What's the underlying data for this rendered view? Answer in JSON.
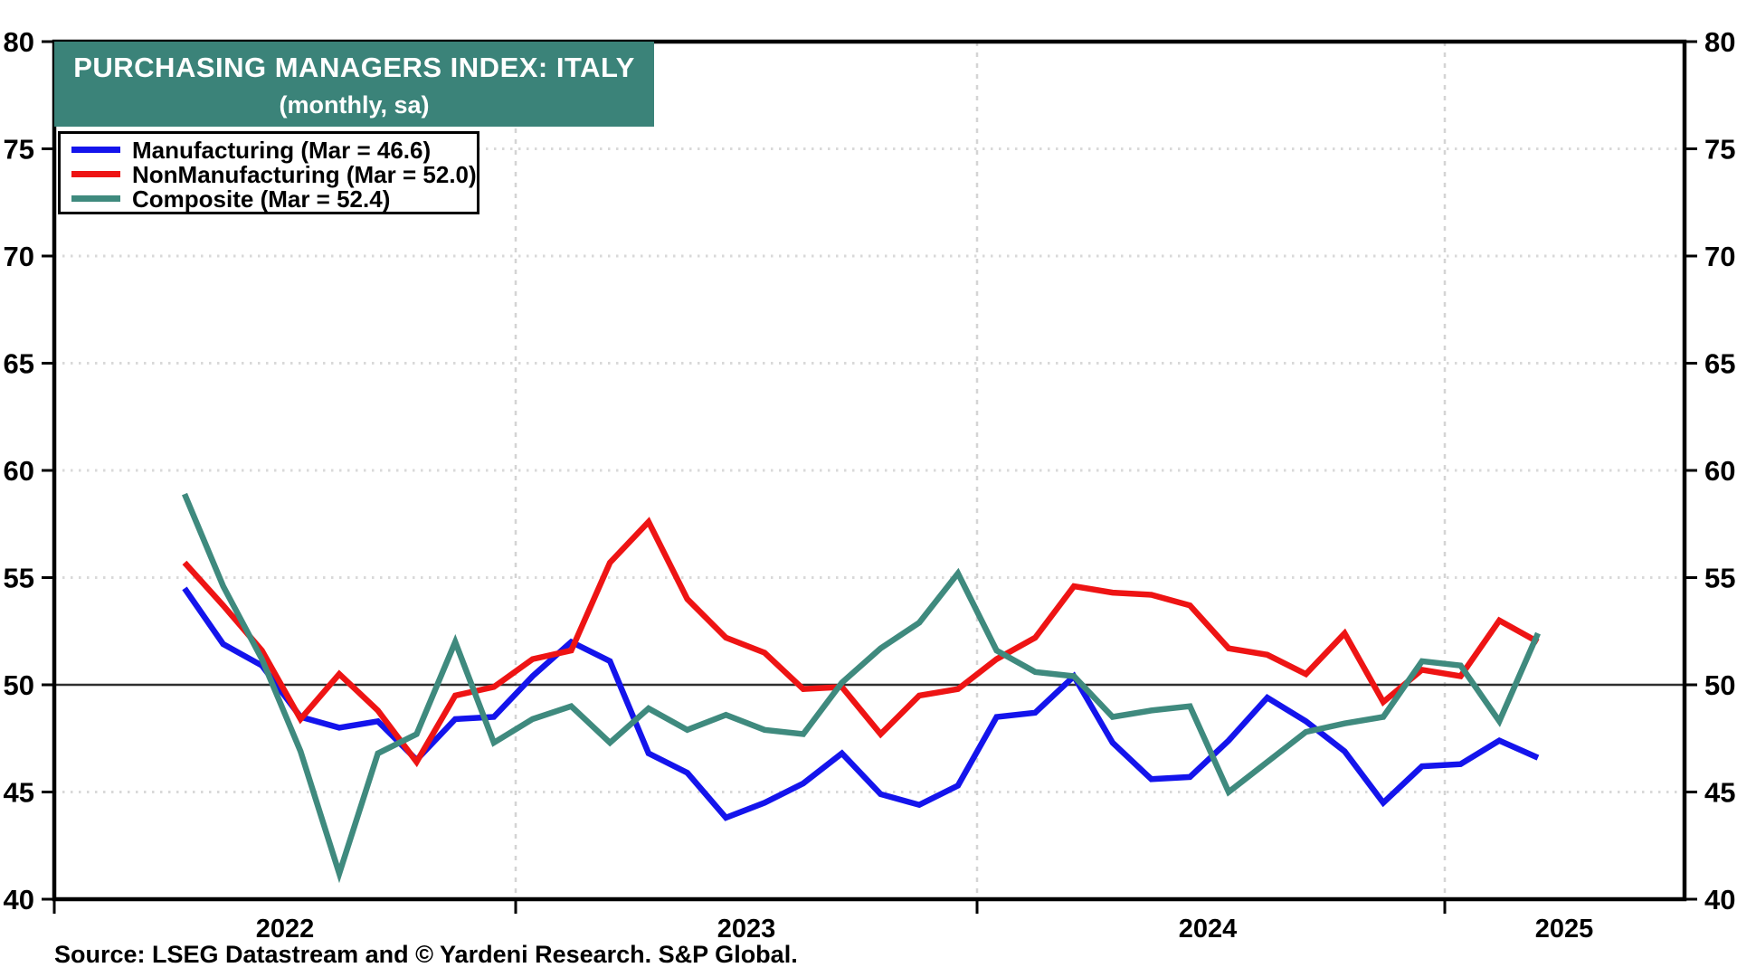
{
  "title": {
    "line1": "PURCHASING MANAGERS INDEX: ITALY",
    "line2": "(monthly, sa)"
  },
  "legend": {
    "items": [
      {
        "label": "Manufacturing (Mar = 46.6)",
        "color": "#1414EC"
      },
      {
        "label": "NonManufacturing (Mar = 52.0)",
        "color": "#EE1414"
      },
      {
        "label": "Composite (Mar = 52.4)",
        "color": "#3F8A7E"
      }
    ]
  },
  "source_line": "Source: LSEG Datastream and © Yardeni Research. S&P Global.",
  "axes": {
    "y_tick_labels": [
      "80",
      "75",
      "70",
      "65",
      "60",
      "55",
      "50",
      "45",
      "40"
    ],
    "x_year_labels": [
      "2022",
      "2023",
      "2024",
      "2025"
    ]
  },
  "colors": {
    "title_background": "#3B8379",
    "manufacturing_line": "#1414EC",
    "nonmanufacturing_line": "#EE1414",
    "composite_line": "#3F8A7E",
    "dotted_gridline": "#D9D9D9",
    "dashed_year_gridline": "#D4D4D4",
    "reference_50_line": "#2F2F2F",
    "axis_frame": "#000000"
  },
  "chart_data": {
    "type": "line",
    "title": "PURCHASING MANAGERS INDEX: ITALY (monthly, sa)",
    "ylim": [
      40,
      80
    ],
    "y_tick_step": 5,
    "y_gridlines_dotted": [
      45,
      55,
      60,
      65,
      70,
      75
    ],
    "y_reference_line": 50,
    "x_year_tick_positions": [
      "2022-01",
      "2023-01",
      "2024-01",
      "2025-01"
    ],
    "legend_position": "top-left",
    "grid": "on",
    "x": [
      "2022-04",
      "2022-05",
      "2022-06",
      "2022-07",
      "2022-08",
      "2022-09",
      "2022-10",
      "2022-11",
      "2022-12",
      "2023-01",
      "2023-02",
      "2023-03",
      "2023-04",
      "2023-05",
      "2023-06",
      "2023-07",
      "2023-08",
      "2023-09",
      "2023-10",
      "2023-11",
      "2023-12",
      "2024-01",
      "2024-02",
      "2024-03",
      "2024-04",
      "2024-05",
      "2024-06",
      "2024-07",
      "2024-08",
      "2024-09",
      "2024-10",
      "2024-11",
      "2024-12",
      "2025-01",
      "2025-02",
      "2025-03"
    ],
    "series": [
      {
        "name": "Manufacturing",
        "color": "#1414EC",
        "values": [
          54.5,
          51.9,
          50.9,
          48.5,
          48.0,
          48.3,
          46.5,
          48.4,
          48.5,
          50.4,
          52.0,
          51.1,
          46.8,
          45.9,
          43.8,
          44.5,
          45.4,
          46.8,
          44.9,
          44.4,
          45.3,
          48.5,
          48.7,
          50.4,
          47.3,
          45.6,
          45.7,
          47.4,
          49.4,
          48.3,
          46.9,
          44.5,
          46.2,
          46.3,
          47.4,
          46.6
        ]
      },
      {
        "name": "NonManufacturing",
        "color": "#EE1414",
        "values": [
          55.7,
          53.7,
          51.6,
          48.4,
          50.5,
          48.8,
          46.4,
          49.5,
          49.9,
          51.2,
          51.6,
          55.7,
          57.6,
          54.0,
          52.2,
          51.5,
          49.8,
          49.9,
          47.7,
          49.5,
          49.8,
          51.2,
          52.2,
          54.6,
          54.3,
          54.2,
          53.7,
          51.7,
          51.4,
          50.5,
          52.4,
          49.2,
          50.7,
          50.4,
          53.0,
          52.0
        ]
      },
      {
        "name": "Composite",
        "color": "#3F8A7E",
        "values": [
          58.9,
          54.6,
          51.2,
          46.9,
          41.2,
          46.8,
          47.7,
          52.0,
          47.3,
          48.4,
          49.0,
          47.3,
          48.9,
          47.9,
          48.6,
          47.9,
          47.7,
          50.1,
          51.7,
          52.9,
          55.2,
          51.6,
          50.6,
          50.4,
          48.5,
          48.8,
          49.0,
          45.0,
          46.4,
          47.8,
          48.2,
          48.5,
          51.1,
          50.9,
          48.3,
          52.4
        ]
      }
    ]
  }
}
